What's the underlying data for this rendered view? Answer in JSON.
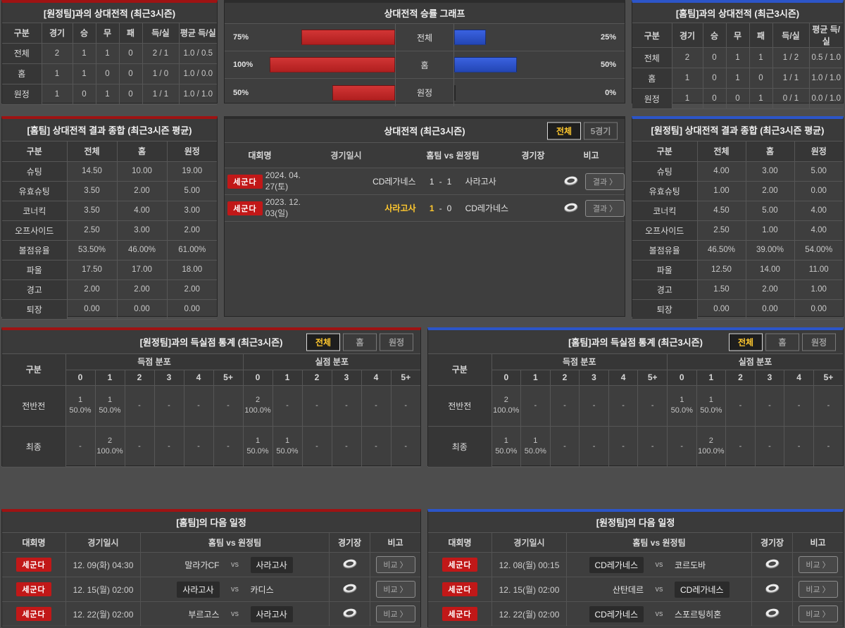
{
  "accents": {
    "home_red": "#9e1313",
    "away_blue": "#2c55c8",
    "highlight_yellow": "#ffc82e",
    "bar_red": "#c1272d",
    "bar_blue": "#2c50cc",
    "badge_red": "#c11818"
  },
  "away_h2h": {
    "title": "[원정팀]과의 상대전적 (최근3시즌)",
    "headers": [
      "구분",
      "경기",
      "승",
      "무",
      "패",
      "득/실",
      "평균 득/실"
    ],
    "rows": [
      [
        "전체",
        "2",
        "1",
        "1",
        "0",
        "2 / 1",
        "1.0 / 0.5"
      ],
      [
        "홈",
        "1",
        "1",
        "0",
        "0",
        "1 / 0",
        "1.0 / 0.0"
      ],
      [
        "원정",
        "1",
        "0",
        "1",
        "0",
        "1 / 1",
        "1.0 / 1.0"
      ]
    ]
  },
  "winrate": {
    "title": "상대전적 승률 그래프",
    "rows": [
      {
        "label": "전체",
        "left_pct": "75%",
        "left_val": 75,
        "right_pct": "25%",
        "right_val": 25
      },
      {
        "label": "홈",
        "left_pct": "100%",
        "left_val": 100,
        "right_pct": "50%",
        "right_val": 50
      },
      {
        "label": "원정",
        "left_pct": "50%",
        "left_val": 50,
        "right_pct": "0%",
        "right_val": 0
      }
    ]
  },
  "chart_data": {
    "type": "bar",
    "title": "상대전적 승률 그래프",
    "categories": [
      "전체",
      "홈",
      "원정"
    ],
    "series": [
      {
        "name": "left_red_bars",
        "values": [
          75,
          100,
          50
        ]
      },
      {
        "name": "right_blue_bars",
        "values": [
          25,
          50,
          0
        ]
      }
    ],
    "unit": "%",
    "xlim": [
      0,
      100
    ],
    "orientation": "horizontal-diverging",
    "legend": "none",
    "grid": "row-separators-only"
  },
  "home_h2h": {
    "title": "[홈팀]과의 상대전적 (최근3시즌)",
    "headers": [
      "구분",
      "경기",
      "승",
      "무",
      "패",
      "득/실",
      "평균 득/실"
    ],
    "rows": [
      [
        "전체",
        "2",
        "0",
        "1",
        "1",
        "1 / 2",
        "0.5 / 1.0"
      ],
      [
        "홈",
        "1",
        "0",
        "1",
        "0",
        "1 / 1",
        "1.0 / 1.0"
      ],
      [
        "원정",
        "1",
        "0",
        "0",
        "1",
        "0 / 1",
        "0.0 / 1.0"
      ]
    ]
  },
  "home_summary": {
    "title": "[홈팀] 상대전적 결과 종합 (최근3시즌 평균)",
    "headers": [
      "구분",
      "전체",
      "홈",
      "원정"
    ],
    "rows": [
      [
        "슈팅",
        "14.50",
        "10.00",
        "19.00"
      ],
      [
        "유효슈팅",
        "3.50",
        "2.00",
        "5.00"
      ],
      [
        "코너킥",
        "3.50",
        "4.00",
        "3.00"
      ],
      [
        "오프사이드",
        "2.50",
        "3.00",
        "2.00"
      ],
      [
        "볼점유율",
        "53.50%",
        "46.00%",
        "61.00%"
      ],
      [
        "파울",
        "17.50",
        "17.00",
        "18.00"
      ],
      [
        "경고",
        "2.00",
        "2.00",
        "2.00"
      ],
      [
        "퇴장",
        "0.00",
        "0.00",
        "0.00"
      ]
    ]
  },
  "matches": {
    "title": "상대전적 (최근3시즌)",
    "tabs": [
      "전체",
      "5경기"
    ],
    "headers": [
      "대회명",
      "경기일시",
      "홈팀  vs  원정팀",
      "경기장",
      "비고"
    ],
    "venue_icon": "stadium-icon",
    "rows": [
      {
        "league": "세군다",
        "date": "2024. 04. 27(토)",
        "home": "CD레가네스",
        "hs": "1",
        "as": "1",
        "away": "사라고사",
        "home_state": "",
        "hs_state": "",
        "as_state": "",
        "away_state": "",
        "btn": "결과 〉"
      },
      {
        "league": "세군다",
        "date": "2023. 12. 03(일)",
        "home": "사라고사",
        "hs": "1",
        "as": "0",
        "away": "CD레가네스",
        "home_state": "win",
        "hs_state": "win",
        "as_state": "",
        "away_state": "",
        "btn": "결과 〉"
      }
    ]
  },
  "away_summary": {
    "title": "[원정팀] 상대전적 결과 종합 (최근3시즌 평균)",
    "headers": [
      "구분",
      "전체",
      "홈",
      "원정"
    ],
    "rows": [
      [
        "슈팅",
        "4.00",
        "3.00",
        "5.00"
      ],
      [
        "유효슈팅",
        "1.00",
        "2.00",
        "0.00"
      ],
      [
        "코너킥",
        "4.50",
        "5.00",
        "4.00"
      ],
      [
        "오프사이드",
        "2.50",
        "1.00",
        "4.00"
      ],
      [
        "볼점유율",
        "46.50%",
        "39.00%",
        "54.00%"
      ],
      [
        "파울",
        "12.50",
        "14.00",
        "11.00"
      ],
      [
        "경고",
        "1.50",
        "2.00",
        "1.00"
      ],
      [
        "퇴장",
        "0.00",
        "0.00",
        "0.00"
      ]
    ]
  },
  "away_goal_stats": {
    "title": "[원정팀]과의 득실점 통계 (최근3시즌)",
    "tabs": [
      "전체",
      "홈",
      "원정"
    ],
    "col_label": "구분",
    "group1": "득점 분포",
    "group2": "실점 분포",
    "cols": [
      "0",
      "1",
      "2",
      "3",
      "4",
      "5+"
    ],
    "rows": [
      {
        "label": "전반전",
        "cells": [
          "1\n50.0%",
          "1\n50.0%",
          "-",
          "-",
          "-",
          "-",
          "2\n100.0%",
          "-",
          "-",
          "-",
          "-",
          "-"
        ]
      },
      {
        "label": "최종",
        "cells": [
          "-",
          "2\n100.0%",
          "-",
          "-",
          "-",
          "-",
          "1\n50.0%",
          "1\n50.0%",
          "-",
          "-",
          "-",
          "-"
        ]
      }
    ]
  },
  "home_goal_stats": {
    "title": "[홈팀]과의 득실점 통계 (최근3시즌)",
    "tabs": [
      "전체",
      "홈",
      "원정"
    ],
    "col_label": "구분",
    "group1": "득점 분포",
    "group2": "실점 분포",
    "cols": [
      "0",
      "1",
      "2",
      "3",
      "4",
      "5+"
    ],
    "rows": [
      {
        "label": "전반전",
        "cells": [
          "2\n100.0%",
          "-",
          "-",
          "-",
          "-",
          "-",
          "1\n50.0%",
          "1\n50.0%",
          "-",
          "-",
          "-",
          "-"
        ]
      },
      {
        "label": "최종",
        "cells": [
          "1\n50.0%",
          "1\n50.0%",
          "-",
          "-",
          "-",
          "-",
          "-",
          "2\n100.0%",
          "-",
          "-",
          "-",
          "-"
        ]
      }
    ]
  },
  "home_schedule": {
    "title": "[홈팀]의 다음 일정",
    "headers": [
      "대회명",
      "경기일시",
      "홈팀  vs  원정팀",
      "경기장",
      "비고"
    ],
    "vs": "vs",
    "rows": [
      {
        "league": "세군다",
        "date": "12. 09(화) 04:30",
        "home": "말라가CF",
        "away": "사라고사",
        "home_state": "",
        "away_state": "focus",
        "btn": "비교 〉"
      },
      {
        "league": "세군다",
        "date": "12. 15(월) 02:00",
        "home": "사라고사",
        "away": "카디스",
        "home_state": "focus",
        "away_state": "",
        "btn": "비교 〉"
      },
      {
        "league": "세군다",
        "date": "12. 22(월) 02:00",
        "home": "부르고스",
        "away": "사라고사",
        "home_state": "",
        "away_state": "focus",
        "btn": "비교 〉"
      }
    ]
  },
  "away_schedule": {
    "title": "[원정팀]의 다음 일정",
    "headers": [
      "대회명",
      "경기일시",
      "홈팀  vs  원정팀",
      "경기장",
      "비고"
    ],
    "vs": "vs",
    "rows": [
      {
        "league": "세군다",
        "date": "12. 08(월) 00:15",
        "home": "CD레가네스",
        "away": "코르도바",
        "home_state": "focus",
        "away_state": "",
        "btn": "비교 〉"
      },
      {
        "league": "세군다",
        "date": "12. 15(월) 02:00",
        "home": "산탄데르",
        "away": "CD레가네스",
        "home_state": "",
        "away_state": "focus",
        "btn": "비교 〉"
      },
      {
        "league": "세군다",
        "date": "12. 22(월) 02:00",
        "home": "CD레가네스",
        "away": "스포르팅히혼",
        "home_state": "focus",
        "away_state": "",
        "btn": "비교 〉"
      }
    ]
  }
}
